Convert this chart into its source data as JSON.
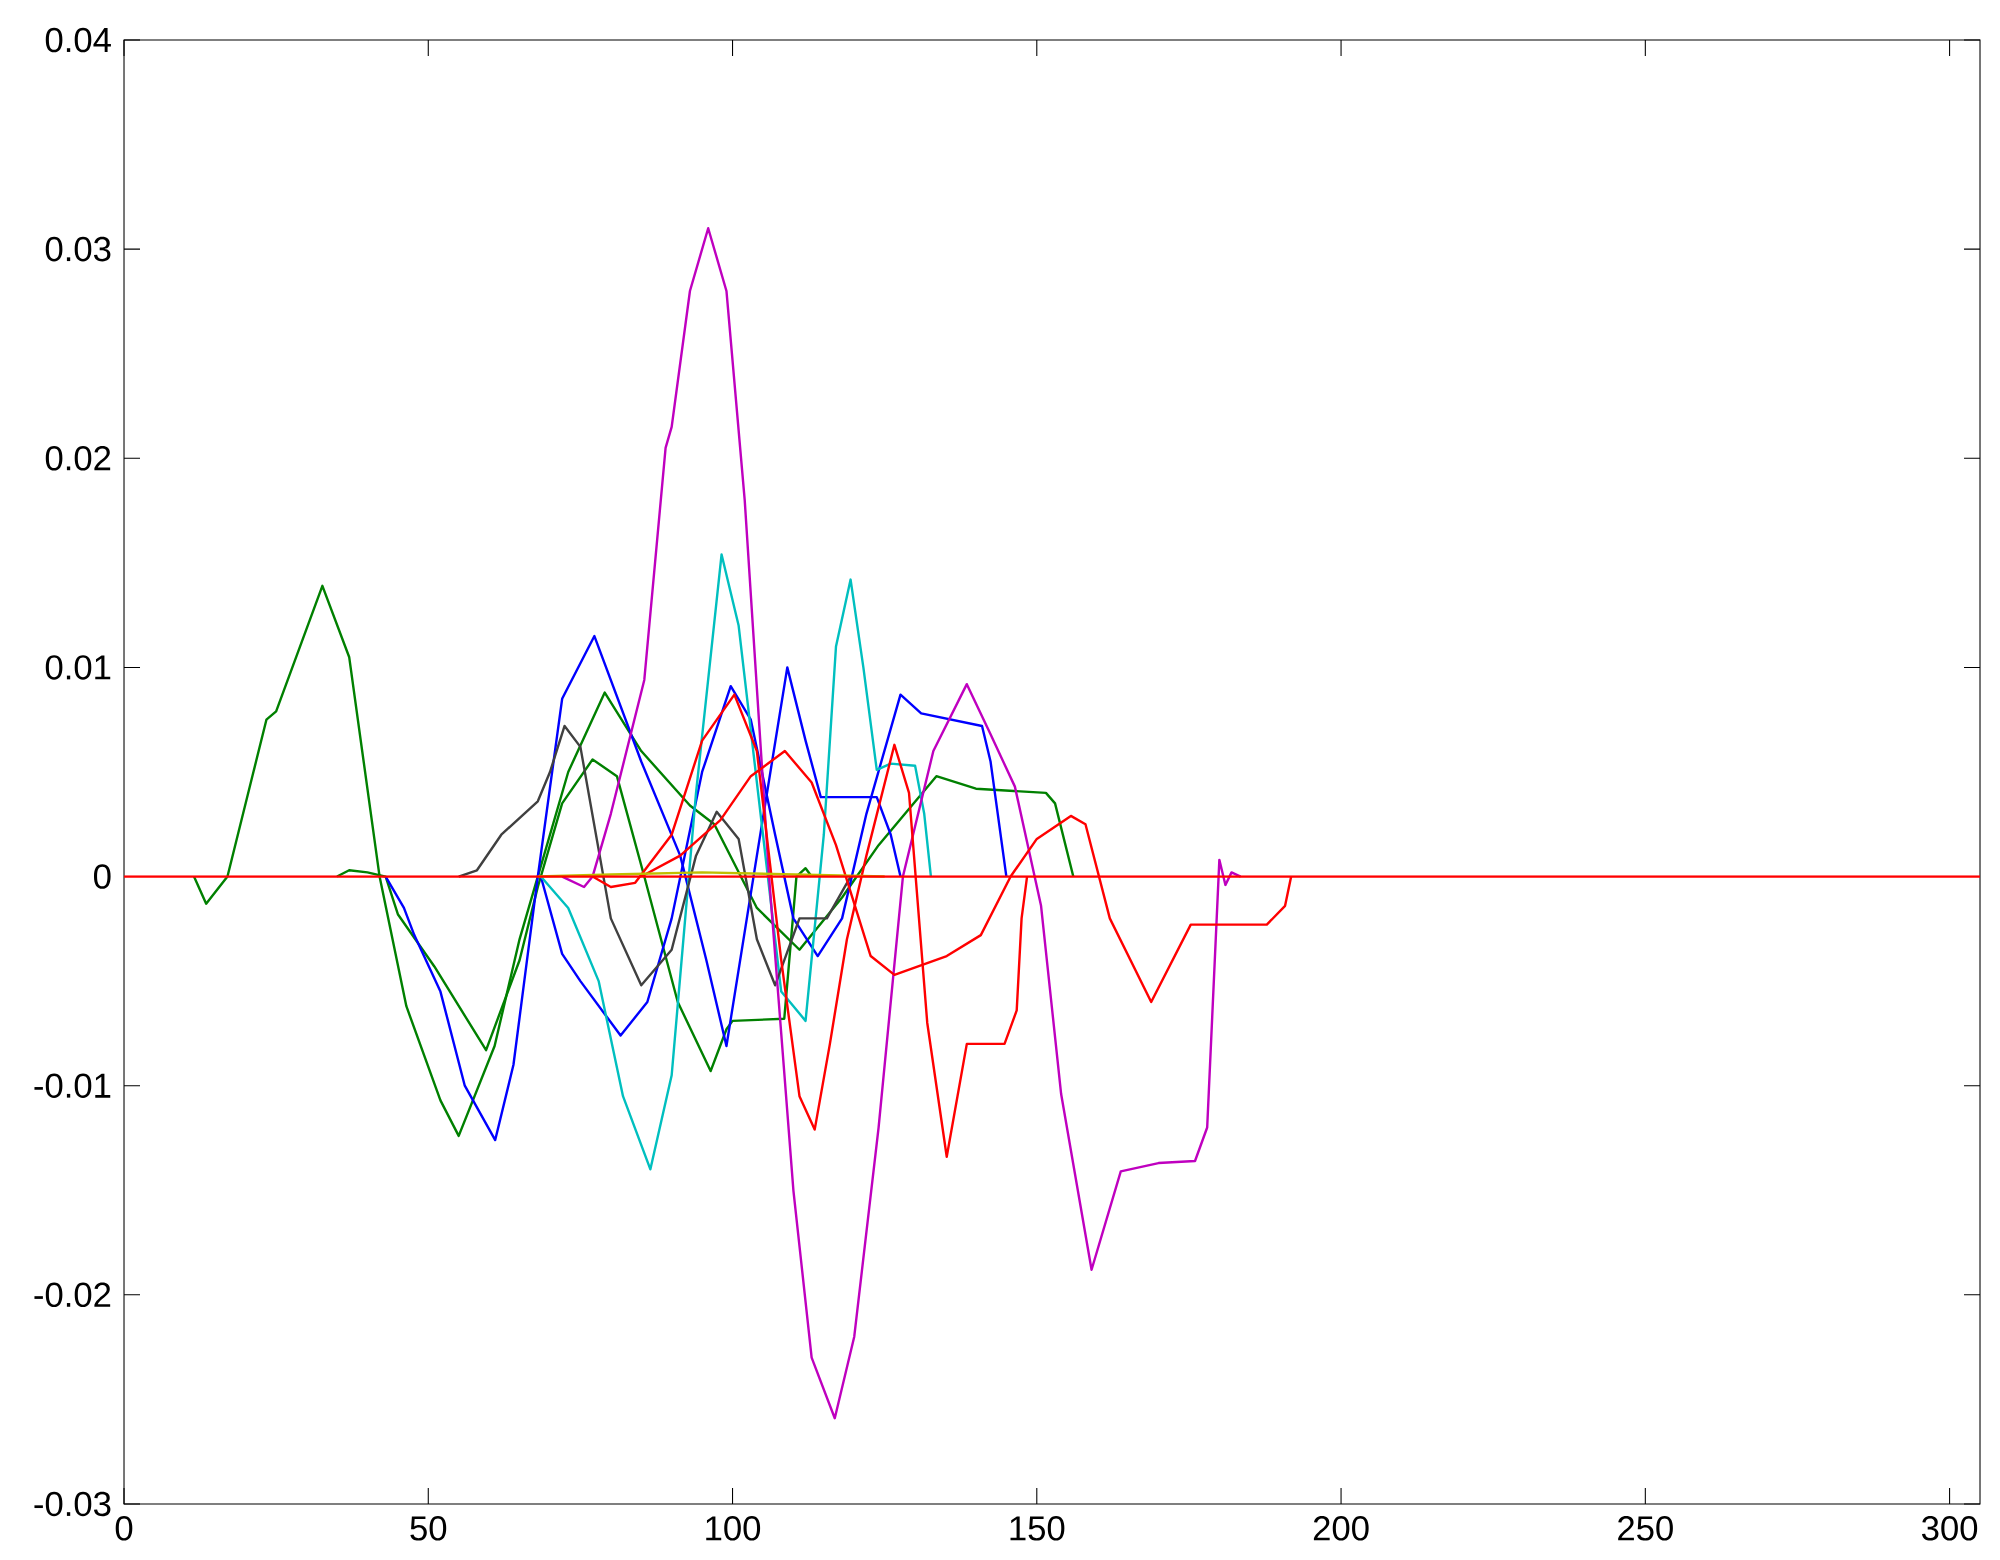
{
  "chart_data": {
    "type": "line",
    "xlim": [
      0,
      305
    ],
    "ylim": [
      -0.03,
      0.04
    ],
    "xticks": [
      0,
      50,
      100,
      150,
      200,
      250,
      300
    ],
    "yticks": [
      -0.03,
      -0.02,
      -0.01,
      0,
      0.01,
      0.02,
      0.03,
      0.04
    ],
    "series": [
      {
        "color": "#008000",
        "x": [
          11.5,
          13.5,
          17,
          23.4,
          25,
          32.6,
          37,
          42,
          46.4,
          52,
          55,
          60.9,
          65,
          68,
          73,
          79,
          85,
          93,
          97,
          104,
          111,
          118,
          124,
          133.5,
          140,
          151.5,
          153,
          156
        ],
        "values": [
          0,
          -0.0013,
          0,
          0.0075,
          0.0079,
          0.0139,
          0.0105,
          0,
          -0.0062,
          -0.0107,
          -0.0124,
          -0.0081,
          -0.003,
          0,
          0.005,
          0.0088,
          0.006,
          0.0034,
          0.0025,
          -0.0015,
          -0.0035,
          -0.001,
          0.0015,
          0.0048,
          0.0042,
          0.004,
          0.0035,
          0
        ]
      },
      {
        "color": "#008000",
        "x": [
          35,
          37,
          40,
          43,
          45,
          51,
          59.5,
          65,
          68,
          72,
          77,
          81,
          85.5,
          91,
          96.4,
          99,
          100,
          108.5,
          110.5,
          112,
          113
        ],
        "values": [
          0,
          0.0003,
          0.0002,
          0,
          -0.0018,
          -0.0043,
          -0.0083,
          -0.004,
          -0.0005,
          0.0035,
          0.0056,
          0.0048,
          0,
          -0.006,
          -0.0093,
          -0.0073,
          -0.0069,
          -0.0068,
          0,
          0.0004,
          0
        ]
      },
      {
        "color": "#0000ff",
        "x": [
          43,
          46,
          47.7,
          52,
          56,
          61,
          64,
          68,
          72,
          77.3,
          85,
          91.4,
          95.7,
          99,
          104,
          109,
          112,
          114.5,
          120,
          123.7,
          126,
          127.6
        ],
        "values": [
          0,
          -0.0015,
          -0.0028,
          -0.0055,
          -0.01,
          -0.0126,
          -0.009,
          0,
          0.0085,
          0.0115,
          0.0055,
          0.001,
          -0.004,
          -0.0081,
          0.001,
          0.01,
          0.0065,
          0.0038,
          0.0038,
          0.0038,
          0.002,
          0
        ]
      },
      {
        "color": "#0000ff",
        "x": [
          68.5,
          72,
          75,
          81.6,
          86,
          90,
          95,
          99.7,
          103,
          107,
          110,
          114,
          118,
          122,
          127.6,
          131,
          141,
          142.4,
          145
        ],
        "values": [
          0,
          -0.0037,
          -0.005,
          -0.0076,
          -0.006,
          -0.002,
          0.005,
          0.0091,
          0.0075,
          0.002,
          -0.002,
          -0.0038,
          -0.002,
          0.003,
          0.0087,
          0.0078,
          0.0072,
          0.0055,
          0
        ]
      },
      {
        "color": "#00bfbf",
        "x": [
          68.5,
          73,
          78,
          82,
          86.5,
          90,
          94,
          98.2,
          101,
          105,
          108,
          112,
          115,
          117,
          119.4,
          121.5,
          123.7,
          126,
          130,
          131.5,
          132.6
        ],
        "values": [
          0,
          -0.0015,
          -0.005,
          -0.0105,
          -0.014,
          -0.0095,
          0.004,
          0.0154,
          0.012,
          0.002,
          -0.0055,
          -0.0069,
          0.002,
          0.011,
          0.0142,
          0.01,
          0.0051,
          0.0054,
          0.0053,
          0.003,
          0
        ]
      },
      {
        "color": "#404040",
        "x": [
          55,
          58,
          62,
          68,
          70,
          72.4,
          75,
          80,
          85,
          90,
          94,
          97.4,
          101,
          104,
          107,
          111,
          115.5,
          119.4
        ],
        "values": [
          0,
          0.0003,
          0.002,
          0.0036,
          0.005,
          0.0072,
          0.0062,
          -0.002,
          -0.0052,
          -0.0035,
          0.001,
          0.0031,
          0.0018,
          -0.003,
          -0.0052,
          -0.002,
          -0.002,
          0
        ]
      },
      {
        "color": "#bf00bf",
        "x": [
          72,
          75.6,
          77,
          80,
          85.5,
          89,
          90,
          93,
          96,
          99,
          102,
          106,
          110,
          113,
          116.8,
          120,
          124,
          128,
          133,
          138.5,
          142.4,
          146.4,
          150.7,
          154,
          159,
          163.8,
          170,
          176,
          178,
          180,
          181,
          182,
          183.5
        ],
        "values": [
          0,
          -0.0005,
          0,
          0.003,
          0.0094,
          0.0205,
          0.0215,
          0.028,
          0.031,
          0.028,
          0.018,
          0,
          -0.015,
          -0.023,
          -0.0259,
          -0.022,
          -0.012,
          0,
          0.006,
          0.0092,
          0.0068,
          0.0043,
          -0.0014,
          -0.0104,
          -0.0188,
          -0.0141,
          -0.0137,
          -0.0136,
          -0.012,
          0.0008,
          -0.0004,
          0.0002,
          0
        ]
      },
      {
        "color": "#ff0000",
        "x": [
          77,
          80,
          84,
          90,
          95,
          100.3,
          104,
          108,
          111,
          113.5,
          116,
          118.8,
          122,
          126.6,
          129,
          132,
          135.2,
          138.5,
          144.7,
          146.7,
          147.5,
          148.4
        ],
        "values": [
          0,
          -0.0005,
          -0.0003,
          0.002,
          0.0065,
          0.0087,
          0.006,
          -0.004,
          -0.0105,
          -0.0121,
          -0.008,
          -0.003,
          0.001,
          0.0063,
          0.004,
          -0.007,
          -0.0134,
          -0.008,
          -0.008,
          -0.0064,
          -0.002,
          0
        ]
      },
      {
        "color": "#ff0000",
        "x": [
          85,
          91.4,
          98,
          103,
          108.6,
          113,
          117,
          122.7,
          126.6,
          135.2,
          140.8,
          145.7,
          150,
          155.6,
          158,
          162,
          168.8,
          175.3,
          187.8,
          190.8,
          191.8
        ],
        "values": [
          0,
          0.001,
          0.0027,
          0.0048,
          0.006,
          0.0045,
          0.0015,
          -0.0038,
          -0.0047,
          -0.0038,
          -0.0028,
          0,
          0.0018,
          0.0029,
          0.0025,
          -0.002,
          -0.006,
          -0.0023,
          -0.0023,
          -0.0014,
          0
        ]
      },
      {
        "color": "#bfbf00",
        "x": [
          68,
          80,
          95,
          110,
          125
        ],
        "values": [
          0,
          0.0001,
          0.0002,
          0.0001,
          0
        ]
      },
      {
        "color": "#ff0000",
        "x": [
          0,
          305
        ],
        "values": [
          0,
          0
        ]
      }
    ]
  }
}
